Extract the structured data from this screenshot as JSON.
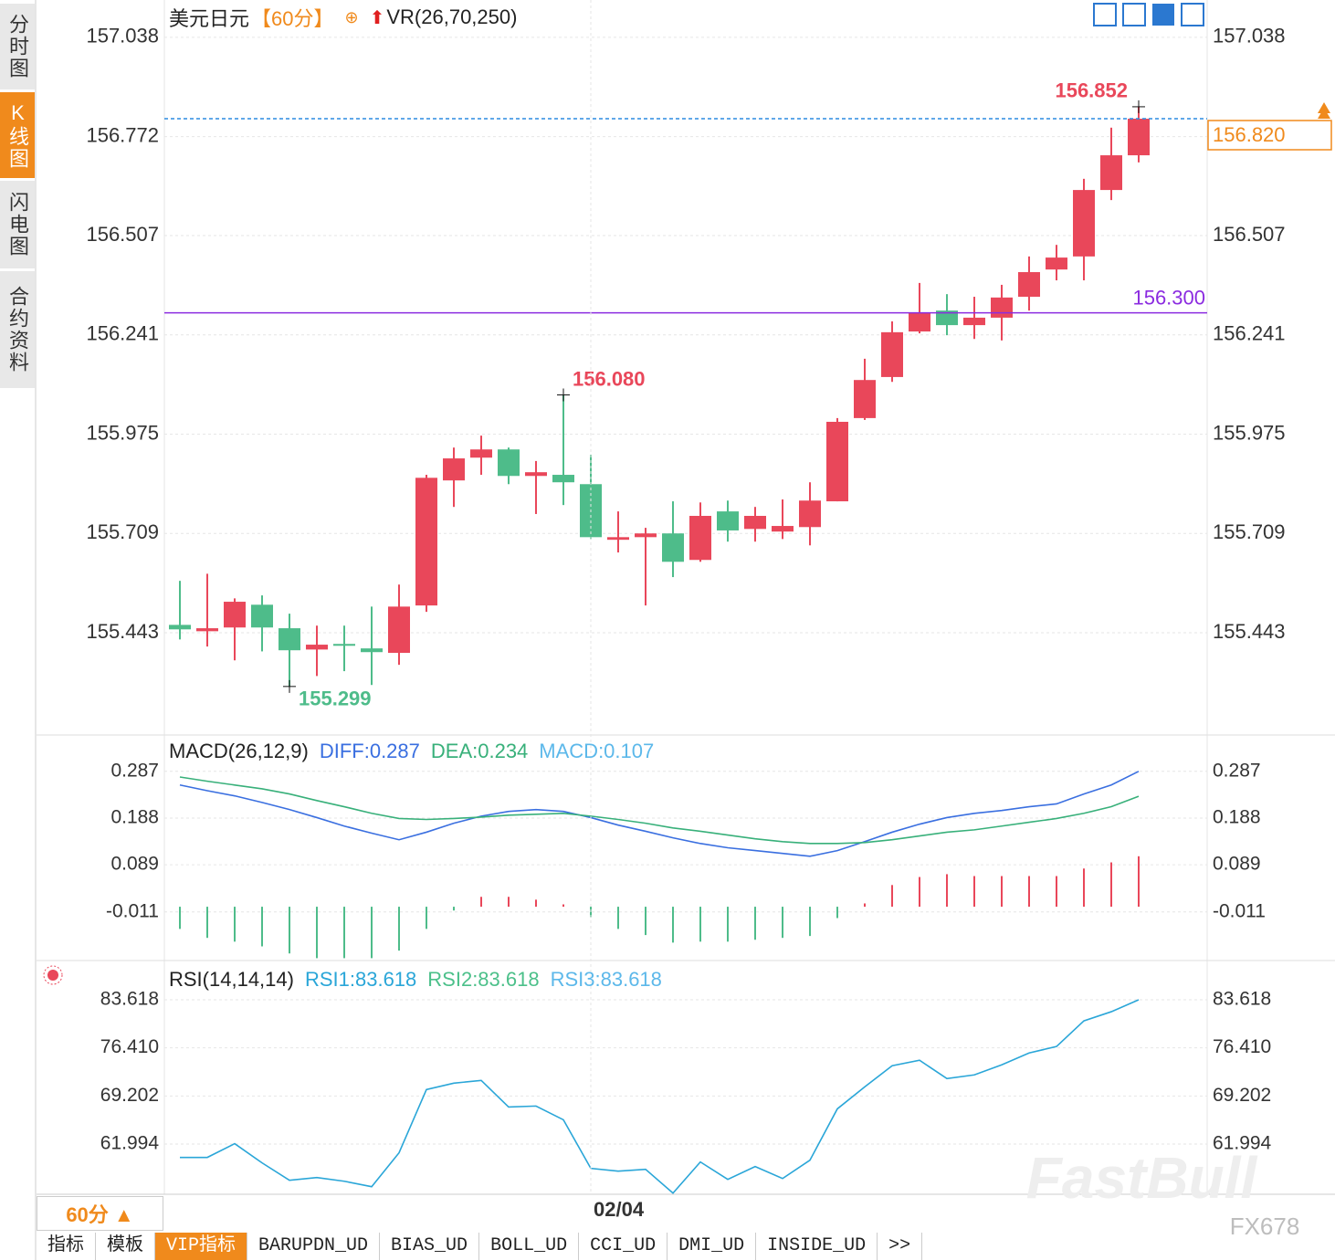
{
  "sidebar": [
    "分时图",
    "K线图",
    "闪电图",
    "合约资料"
  ],
  "period_button": "60分 ▲",
  "toolbar": [
    "指标",
    "模板",
    "VIP指标",
    "BARUPDN_UD",
    "BIAS_UD",
    "BOLL_UD",
    "CCI_UD",
    "DMI_UD",
    "INSIDE_UD",
    ">>"
  ],
  "watermarks": [
    "FastBull",
    "FX678"
  ],
  "chart_data": [
    {
      "type": "candlestick",
      "title": "美元日元",
      "period": "【60分】",
      "indicator": "VR(26,70,250)",
      "open": [
        155.464,
        155.447,
        155.457,
        155.518,
        155.455,
        155.398,
        155.413,
        155.401,
        155.389,
        155.516,
        155.851,
        155.912,
        155.934,
        155.863,
        155.866,
        155.841,
        155.692,
        155.699,
        155.709,
        155.638,
        155.768,
        155.721,
        155.714,
        155.726,
        155.795,
        156.018,
        156.128,
        156.25,
        156.306,
        156.267,
        156.287,
        156.343,
        156.416,
        156.451,
        156.629,
        156.722
      ],
      "high": [
        155.582,
        155.601,
        155.535,
        155.543,
        155.494,
        155.462,
        155.462,
        155.513,
        155.572,
        155.866,
        155.939,
        155.971,
        155.939,
        155.903,
        156.08,
        155.92,
        155.768,
        155.724,
        155.795,
        155.792,
        155.797,
        155.78,
        155.8,
        155.846,
        156.018,
        156.177,
        156.277,
        156.38,
        156.35,
        156.343,
        156.375,
        156.451,
        156.482,
        156.659,
        156.796,
        156.852
      ],
      "low": [
        155.425,
        155.406,
        155.369,
        155.393,
        155.299,
        155.327,
        155.34,
        155.303,
        155.357,
        155.499,
        155.78,
        155.866,
        155.841,
        155.761,
        155.785,
        155.694,
        155.658,
        155.516,
        155.592,
        155.633,
        155.687,
        155.687,
        155.694,
        155.677,
        155.795,
        156.013,
        156.115,
        156.245,
        156.24,
        156.23,
        156.226,
        156.306,
        156.387,
        156.387,
        156.602,
        156.703
      ],
      "close": [
        155.452,
        155.455,
        155.526,
        155.457,
        155.396,
        155.411,
        155.408,
        155.391,
        155.513,
        155.858,
        155.91,
        155.934,
        155.863,
        155.873,
        155.846,
        155.699,
        155.699,
        155.709,
        155.633,
        155.756,
        155.717,
        155.756,
        155.729,
        155.797,
        156.008,
        156.12,
        156.248,
        156.299,
        156.267,
        156.287,
        156.341,
        156.409,
        156.448,
        156.629,
        156.722,
        156.82
      ],
      "up_color": "#e9475a",
      "down_color": "#4ebc8a",
      "ylim": [
        155.169,
        157.138
      ],
      "yticks": [
        157.038,
        156.772,
        156.507,
        156.241,
        155.975,
        155.709,
        155.443
      ],
      "grid": true,
      "hline": {
        "value": 156.3,
        "label": "156.300",
        "color": "#8b2be0"
      },
      "last": {
        "value": 156.82,
        "label": "156.820",
        "color": "#2b8be0",
        "tag_color": "#f08a1c"
      },
      "annotations": [
        {
          "value": 156.852,
          "label": "156.852"
        },
        {
          "value": 156.08,
          "label": "156.080"
        },
        {
          "value": 155.299,
          "label": "155.299"
        }
      ]
    },
    {
      "type": "macd",
      "title": "MACD(26,12,9)",
      "ylim": [
        -0.114,
        0.364
      ],
      "yticks": [
        0.287,
        0.188,
        0.089,
        -0.011
      ],
      "grid": true,
      "series": [
        {
          "name": "DIFF:0.287",
          "color": "#3a6fe0",
          "style": "line",
          "values": [
            0.258,
            0.246,
            0.235,
            0.221,
            0.206,
            0.189,
            0.171,
            0.156,
            0.142,
            0.158,
            0.177,
            0.192,
            0.202,
            0.206,
            0.202,
            0.189,
            0.173,
            0.16,
            0.146,
            0.134,
            0.125,
            0.119,
            0.113,
            0.107,
            0.119,
            0.138,
            0.158,
            0.175,
            0.189,
            0.198,
            0.204,
            0.212,
            0.218,
            0.239,
            0.258,
            0.287
          ]
        },
        {
          "name": "DEA:0.234",
          "color": "#38b07a",
          "style": "line",
          "values": [
            0.275,
            0.266,
            0.258,
            0.25,
            0.239,
            0.225,
            0.212,
            0.198,
            0.187,
            0.185,
            0.187,
            0.19,
            0.194,
            0.196,
            0.198,
            0.192,
            0.185,
            0.177,
            0.167,
            0.16,
            0.152,
            0.144,
            0.138,
            0.134,
            0.134,
            0.136,
            0.142,
            0.15,
            0.158,
            0.163,
            0.171,
            0.179,
            0.187,
            0.198,
            0.212,
            0.234
          ]
        },
        {
          "name": "MACD:0.107",
          "color": "#5cb8ea",
          "style": "histogram",
          "up_color": "#e9475a",
          "down_color": "#4ebc8a",
          "values": [
            -0.047,
            -0.066,
            -0.074,
            -0.084,
            -0.099,
            -0.109,
            -0.109,
            -0.109,
            -0.093,
            -0.047,
            -0.008,
            0.021,
            0.021,
            0.015,
            0.005,
            -0.022,
            -0.047,
            -0.06,
            -0.076,
            -0.074,
            -0.074,
            -0.07,
            -0.066,
            -0.062,
            -0.024,
            0.007,
            0.046,
            0.063,
            0.069,
            0.065,
            0.065,
            0.065,
            0.065,
            0.081,
            0.094,
            0.107
          ]
        }
      ]
    },
    {
      "type": "line",
      "title": "RSI(14,14,14)",
      "categories": [
        null,
        null,
        null,
        null,
        null,
        null,
        null,
        null,
        null,
        null,
        null,
        null,
        null,
        null,
        null,
        "02/04",
        null,
        null,
        null,
        null,
        null,
        null,
        null,
        null,
        null,
        null,
        null,
        null,
        null,
        null,
        null,
        null,
        null,
        null,
        null,
        null
      ],
      "ylim": [
        54.467,
        89.503
      ],
      "yticks": [
        83.618,
        {
          "value": 76.41,
          "label": "76.410"
        },
        69.202,
        61.994
      ],
      "grid": true,
      "series": [
        {
          "name": "RSI1:83.618",
          "color": "#2aa6d8",
          "values": [
            59.99,
            59.99,
            62.05,
            59.17,
            56.56,
            56.97,
            56.42,
            55.6,
            60.68,
            70.16,
            71.12,
            71.53,
            67.55,
            67.69,
            65.63,
            58.35,
            57.93,
            58.21,
            54.64,
            59.31,
            56.7,
            58.62,
            56.83,
            59.58,
            67.27,
            70.57,
            73.73,
            74.55,
            71.81,
            72.36,
            73.87,
            75.65,
            76.61,
            80.46,
            81.83,
            83.618
          ]
        },
        {
          "name": "RSI2:83.618",
          "color": "#4cc08a"
        },
        {
          "name": "RSI3:83.618",
          "color": "#5cb8ea"
        }
      ]
    }
  ]
}
